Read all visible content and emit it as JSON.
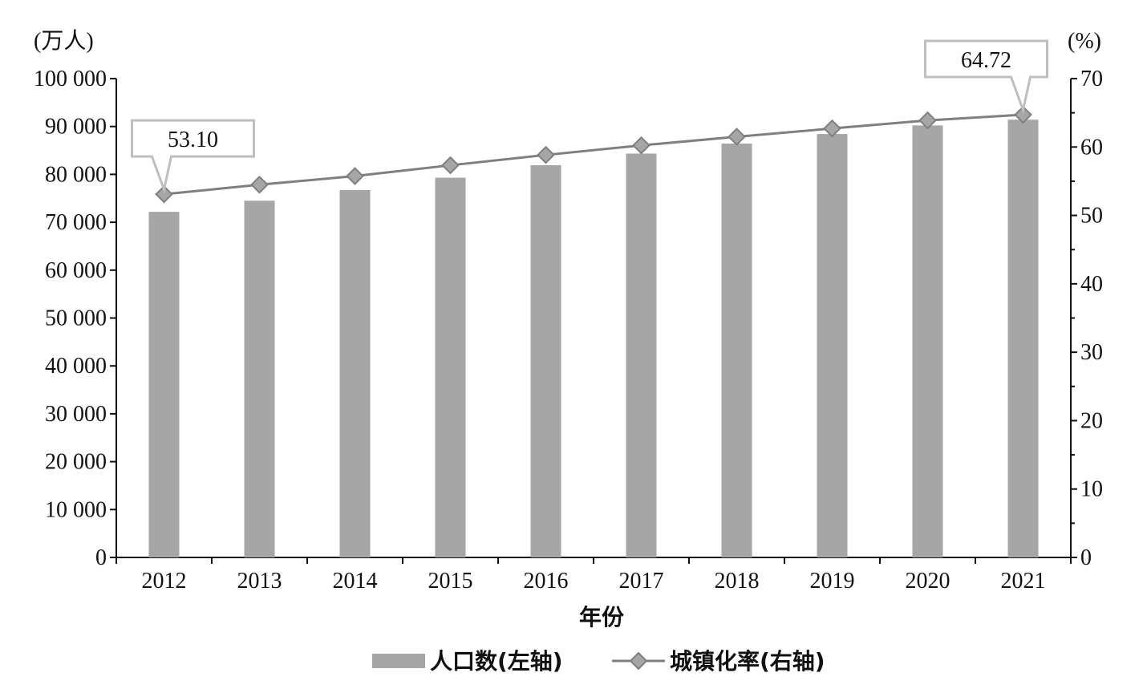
{
  "chart_data": {
    "type": "bar",
    "categories": [
      "2012",
      "2013",
      "2014",
      "2015",
      "2016",
      "2017",
      "2018",
      "2019",
      "2020",
      "2021"
    ],
    "series": [
      {
        "name": "人口数(左轴)",
        "type": "bar",
        "axis": "left",
        "values": [
          72175,
          74502,
          76738,
          79302,
          81924,
          84343,
          86433,
          88426,
          90220,
          91425
        ]
      },
      {
        "name": "城镇化率(右轴)",
        "type": "line",
        "axis": "right",
        "values": [
          53.1,
          54.49,
          55.75,
          57.33,
          58.84,
          60.24,
          61.5,
          62.71,
          63.89,
          64.72
        ]
      }
    ],
    "xlabel": "年份",
    "ylabel_left": "(万人)",
    "ylabel_right": "(%)",
    "ylim_left": [
      0,
      100000
    ],
    "ylim_right": [
      0,
      70
    ],
    "yticks_left": [
      "0",
      "10 000",
      "20 000",
      "30 000",
      "40 000",
      "50 000",
      "60 000",
      "70 000",
      "80 000",
      "90 000",
      "100 000"
    ],
    "yticks_right": [
      "0",
      "10",
      "20",
      "30",
      "40",
      "50",
      "60",
      "70"
    ],
    "annotations": [
      {
        "category": "2012",
        "text": "53.10"
      },
      {
        "category": "2021",
        "text": "64.72"
      }
    ],
    "legend_position": "bottom",
    "grid": false,
    "colors": {
      "bar": "#a6a6a6",
      "line": "#7f7f7f",
      "marker": "#a6a6a6",
      "axis": "#111111",
      "callout_border": "#bfbfbf"
    }
  }
}
